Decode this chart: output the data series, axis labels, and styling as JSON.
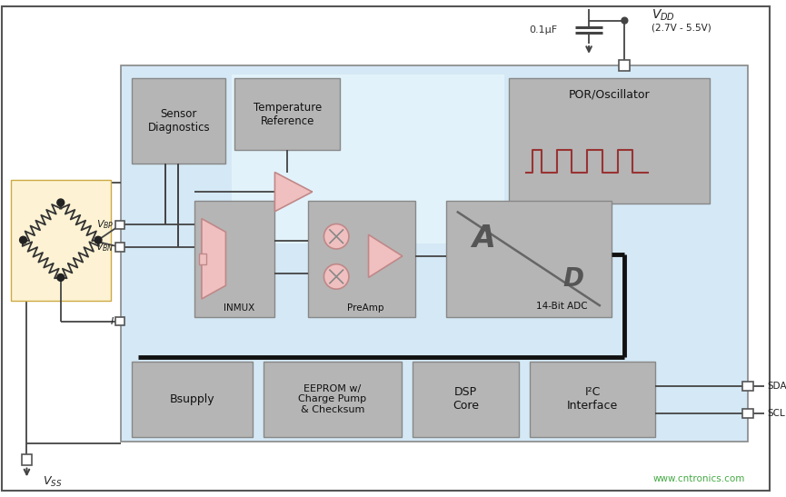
{
  "fig_width": 8.65,
  "fig_height": 5.47,
  "bg_outer": "#ffffff",
  "bg_chip": "#d4e8f5",
  "bg_chip_inner_light": "#e2f2fa",
  "bg_bridge_sensor": "#fdf3d4",
  "box_fill": "#b5b5b5",
  "box_stroke": "#888888",
  "pink_fill": "#f0c0c0",
  "pink_stroke": "#c08888",
  "line_color": "#333333",
  "thick_line": "#111111",
  "watermark_color": "#44aa44",
  "cap_label": "0.1μF",
  "sensor_diag_label": "Sensor\nDiagnostics",
  "temp_ref_label": "Temperature\nReference",
  "por_label": "POR/Oscillator",
  "inmux_label": "INMUX",
  "preamp_label": "PreAmp",
  "adc_label_a": "A",
  "adc_label_d": "D",
  "adc_label_bit": "14-Bit ADC",
  "bsupply_label": "Bsupply",
  "eeprom_label": "EEPROM w/\nCharge Pump\n& Checksum",
  "dsp_label": "DSP\nCore",
  "i2c_label": "I²C\nInterface",
  "vdd_range": "(2.7V - 5.5V)",
  "sda_label": "SDA",
  "scl_label": "SCL",
  "watermark": "www.cntronics.com"
}
